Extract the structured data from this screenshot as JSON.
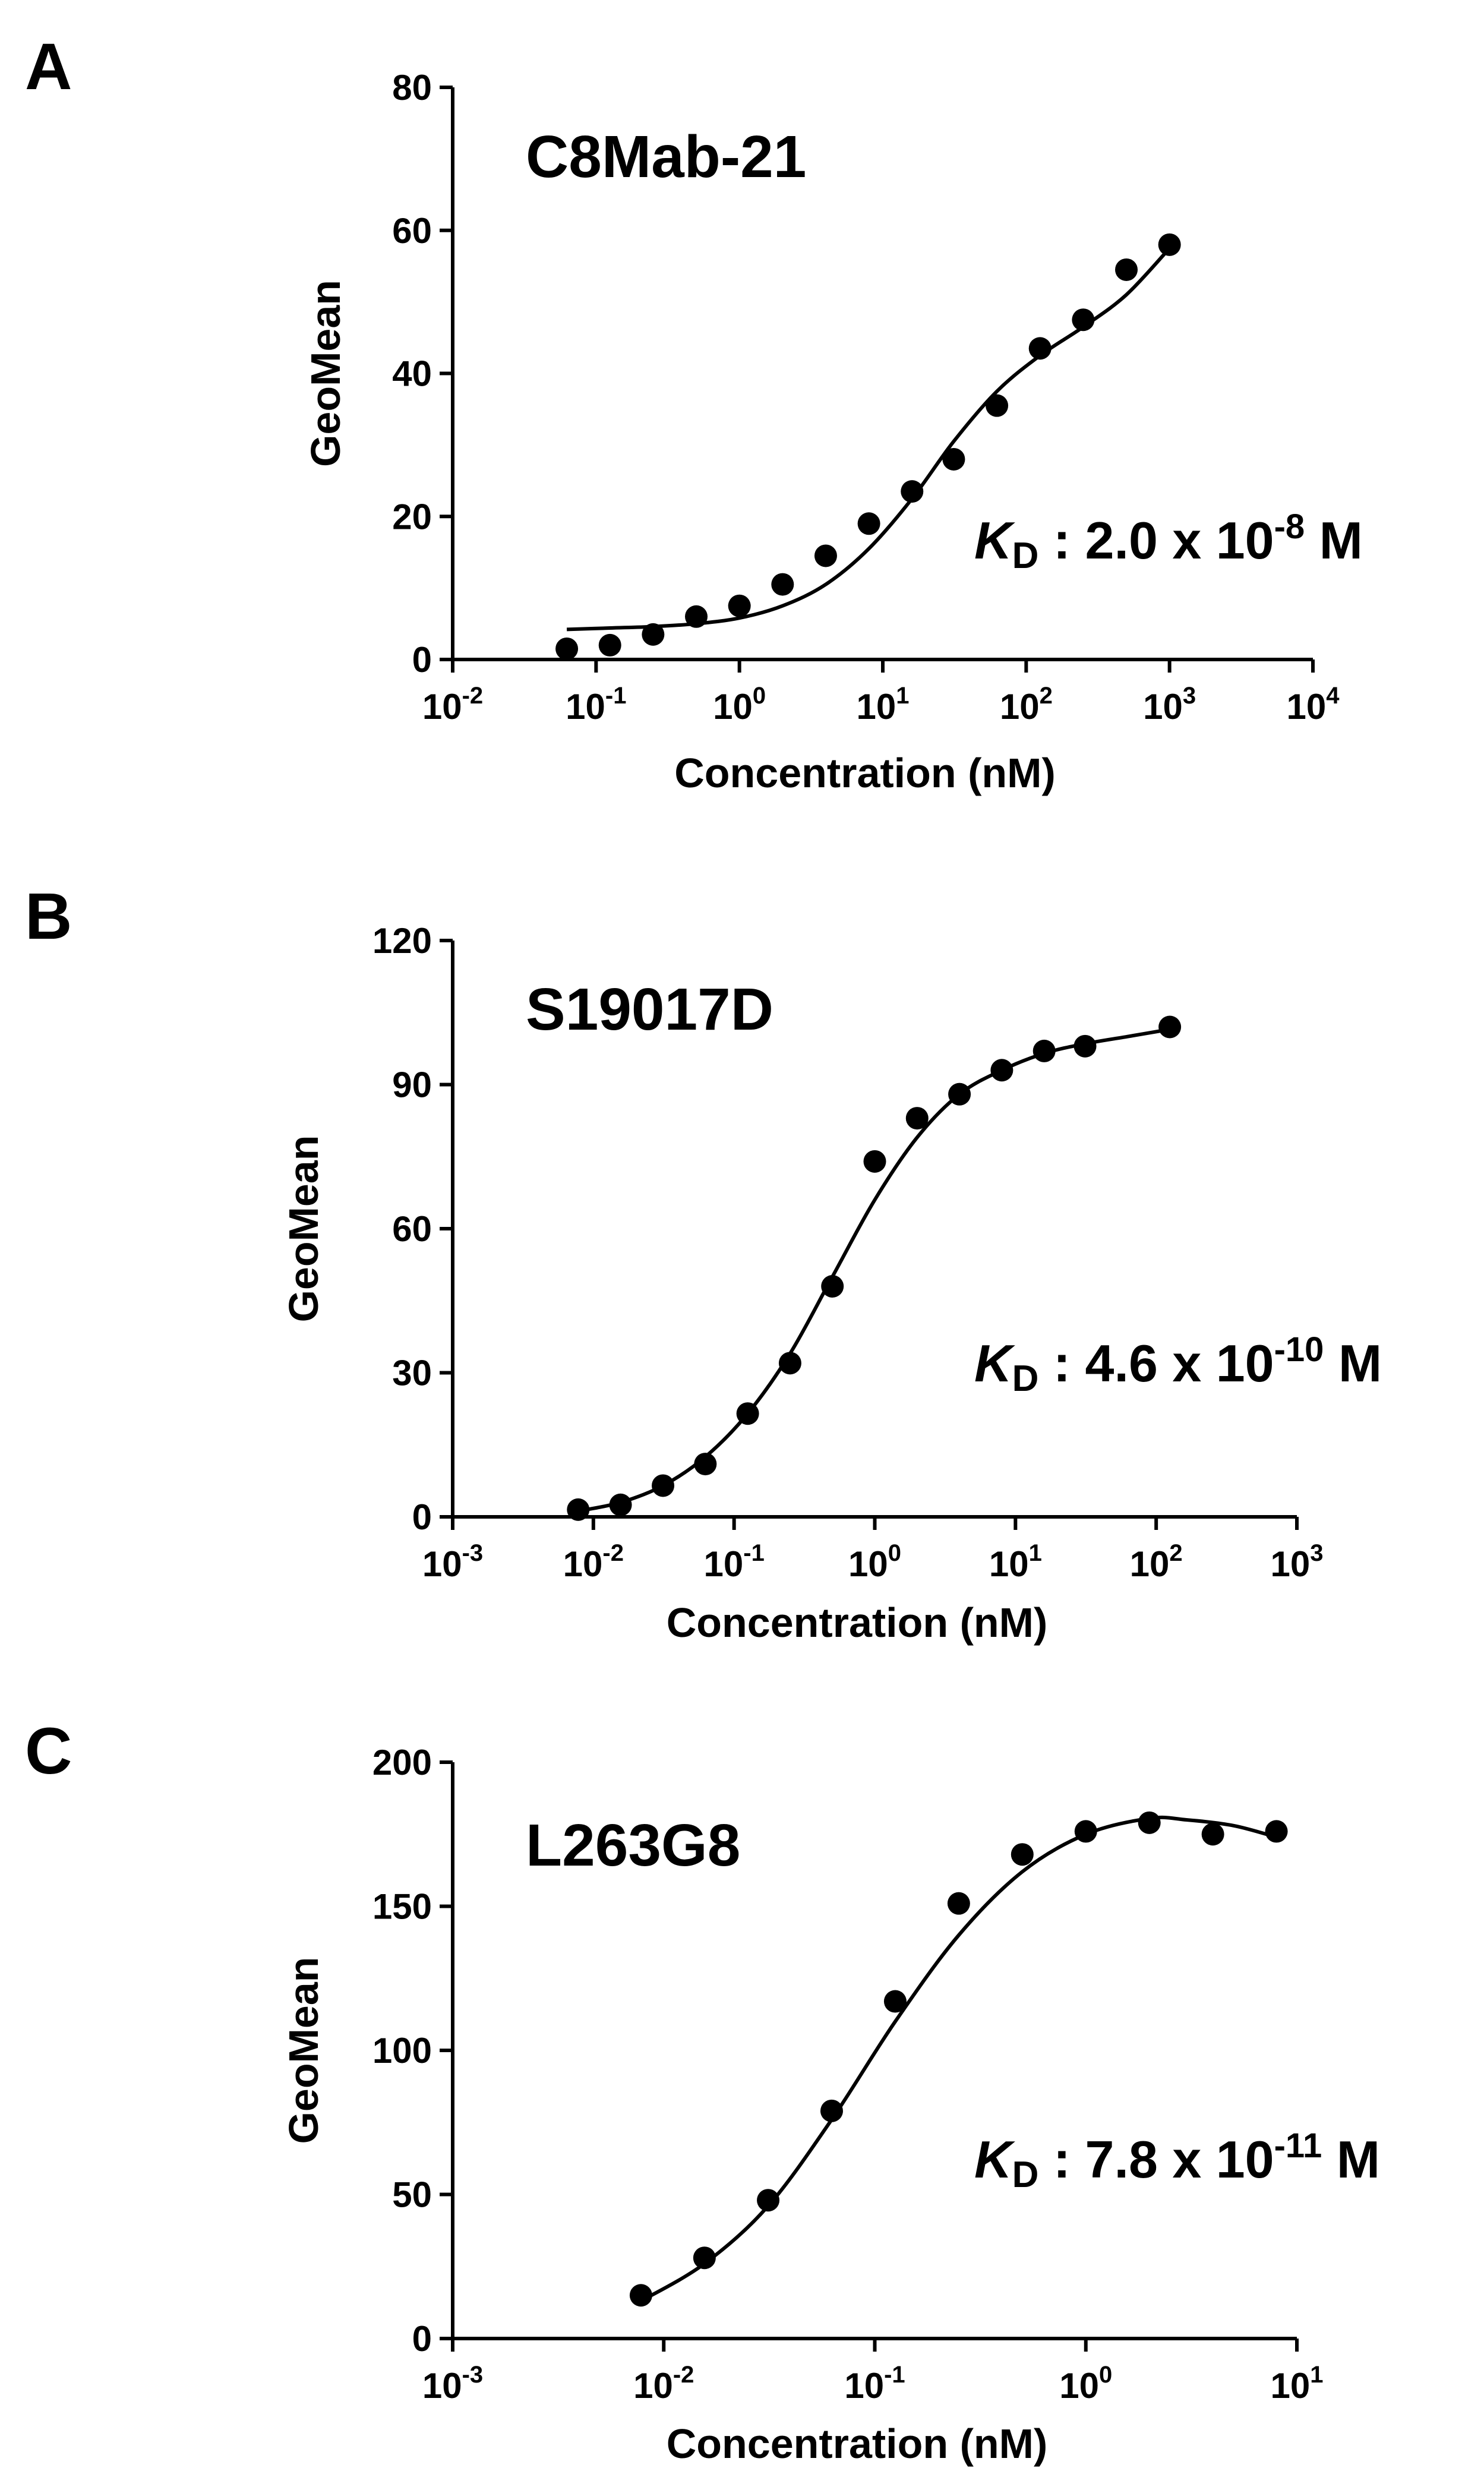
{
  "chart_data": [
    {
      "panel": "A",
      "type": "scatter",
      "title": "C8Mab-21",
      "xlabel": "Concentration (nM)",
      "ylabel": "GeoMean",
      "x_scale": "log",
      "xlim": [
        0.01,
        10000
      ],
      "ylim": [
        0,
        80
      ],
      "x_tick_exponents": [
        -2,
        -1,
        0,
        1,
        2,
        3,
        4
      ],
      "y_ticks": [
        0,
        20,
        40,
        60,
        80
      ],
      "kd": {
        "italic": "K",
        "sub": "D",
        "text": " : 2.0 x 10",
        "exp": "-8",
        "unit": " M"
      },
      "points": {
        "x": [
          0.0625,
          0.125,
          0.25,
          0.5,
          1,
          2,
          4,
          8,
          16,
          31.25,
          62.5,
          125,
          250,
          500,
          1000
        ],
        "y": [
          1.5,
          2,
          3.5,
          6,
          7.5,
          10.5,
          14.5,
          19,
          23.5,
          28,
          35.5,
          43.5,
          47.5,
          54.5,
          58
        ]
      },
      "fit_curve": {
        "x": [
          0.0625,
          0.125,
          0.25,
          0.5,
          1,
          2,
          4,
          8,
          16,
          31.25,
          62.5,
          125,
          250,
          500,
          1000
        ],
        "y": [
          4.2,
          4.4,
          4.6,
          5.0,
          5.8,
          7.5,
          10.5,
          15.5,
          22.5,
          30.5,
          37.5,
          42.5,
          46.5,
          51,
          57.5
        ]
      }
    },
    {
      "panel": "B",
      "type": "scatter",
      "title": "S19017D",
      "xlabel": "Concentration (nM)",
      "ylabel": "GeoMean",
      "x_scale": "log",
      "xlim": [
        0.001,
        1000
      ],
      "ylim": [
        0,
        120
      ],
      "x_tick_exponents": [
        -3,
        -2,
        -1,
        0,
        1,
        2,
        3
      ],
      "y_ticks": [
        0,
        30,
        60,
        90,
        120
      ],
      "kd": {
        "italic": "K",
        "sub": "D",
        "text": " : 4.6 x 10",
        "exp": "-10",
        "unit": " M"
      },
      "points": {
        "x": [
          0.0078,
          0.0156,
          0.03125,
          0.0625,
          0.125,
          0.25,
          0.5,
          1,
          2,
          4,
          8,
          16,
          31.25,
          125
        ],
        "y": [
          1.5,
          2.5,
          6.5,
          11,
          21.5,
          32,
          48,
          74,
          83,
          88,
          93,
          97,
          98,
          102
        ]
      },
      "fit_curve": {
        "x": [
          0.0078,
          0.0156,
          0.03125,
          0.0625,
          0.125,
          0.25,
          0.5,
          1,
          2,
          4,
          8,
          16,
          31.25,
          62.5,
          125
        ],
        "y": [
          1.2,
          3,
          6.5,
          12.5,
          21.5,
          34,
          50,
          66,
          79,
          88,
          93,
          96.5,
          98.5,
          100,
          101.5
        ]
      }
    },
    {
      "panel": "C",
      "type": "scatter",
      "title": "L263G8",
      "xlabel": "Concentration (nM)",
      "ylabel": "GeoMean",
      "x_scale": "log",
      "xlim": [
        0.001,
        10
      ],
      "ylim": [
        0,
        200
      ],
      "x_tick_exponents": [
        -3,
        -2,
        -1,
        0,
        1
      ],
      "y_ticks": [
        0,
        50,
        100,
        150,
        200
      ],
      "kd": {
        "italic": "K",
        "sub": "D",
        "text": " : 7.8 x 10",
        "exp": "-11",
        "unit": " M"
      },
      "points": {
        "x": [
          0.0078,
          0.0156,
          0.03125,
          0.0625,
          0.125,
          0.25,
          0.5,
          1,
          2,
          4,
          8
        ],
        "y": [
          15,
          28,
          48,
          79,
          117,
          151,
          168,
          176,
          179,
          175,
          176
        ]
      },
      "fit_curve": {
        "x": [
          0.0078,
          0.0156,
          0.03125,
          0.0625,
          0.125,
          0.25,
          0.5,
          1,
          2,
          3,
          5,
          8
        ],
        "y": [
          13,
          26,
          46,
          76,
          110,
          140,
          162,
          175,
          180.5,
          180,
          178,
          174
        ]
      }
    }
  ]
}
